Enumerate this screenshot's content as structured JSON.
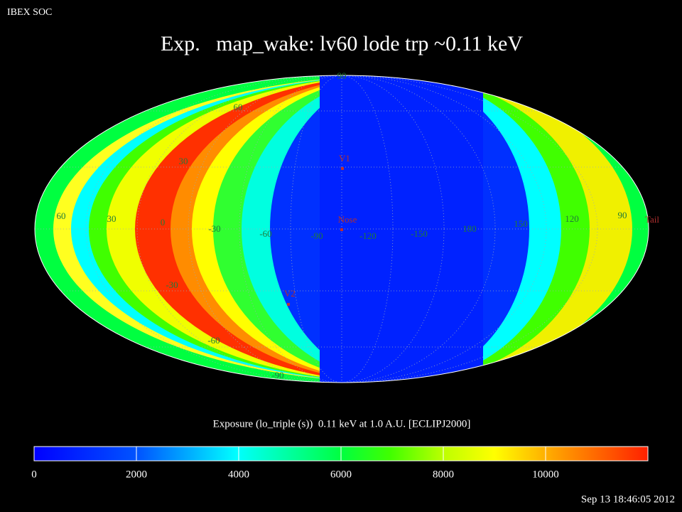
{
  "header": {
    "org": "IBEX SOC",
    "title": "Exp.   map_wake: lv60 lode trp ~0.11 keV",
    "timestamp": "Sep 13 18:46:05 2012"
  },
  "map": {
    "grid_labels": [
      "90",
      "60",
      "30",
      "60",
      "30",
      "0",
      "-30",
      "-60",
      "-90",
      "-120",
      "-150",
      "180",
      "150",
      "120",
      "90",
      "-30",
      "-60",
      "-90"
    ],
    "markers": [
      "V1",
      "Nose",
      "V2",
      "Tail"
    ]
  },
  "colorbar": {
    "title": "Exposure (lo_triple (s))  0.11 keV at 1.0 A.U. [ECLIPJ2000]",
    "lim": [
      0,
      12000
    ],
    "ticks": [
      0,
      2000,
      4000,
      6000,
      8000,
      10000
    ]
  }
}
